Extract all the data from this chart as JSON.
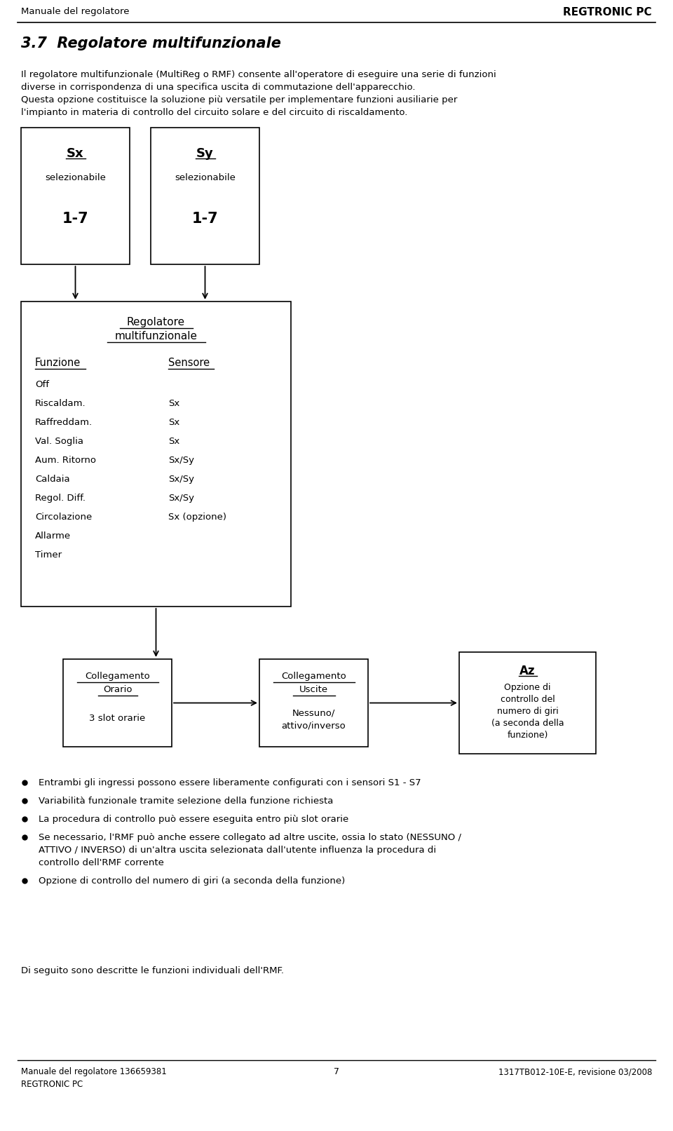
{
  "page_width": 9.6,
  "page_height": 16.13,
  "bg_color": "#ffffff",
  "header_left": "Manuale del regolatore",
  "header_right": "REGTRONIC PC",
  "section_title": "3.7  Regolatore multifunzionale",
  "para1_l1": "Il regolatore multifunzionale (MultiReg o RMF) consente all'operatore di eseguire una serie di funzioni",
  "para1_l2": "diverse in corrispondenza di una specifica uscita di commutazione dell'apparecchio.",
  "para2_l1": "Questa opzione costituisce la soluzione più versatile per implementare funzioni ausiliarie per",
  "para2_l2": "l'impianto in materia di controllo del circuito solare e del circuito di riscaldamento.",
  "box_sx_title": "Sx",
  "box_sx_sub": "selezionabile",
  "box_sx_val": "1-7",
  "box_sy_title": "Sy",
  "box_sy_sub": "selezionabile",
  "box_sy_val": "1-7",
  "reg_box_col1": "Funzione",
  "reg_box_col2": "Sensore",
  "func_rows": [
    [
      "Off",
      ""
    ],
    [
      "Riscaldam.",
      "Sx"
    ],
    [
      "Raffreddam.",
      "Sx"
    ],
    [
      "Val. Soglia",
      "Sx"
    ],
    [
      "Aum. Ritorno",
      "Sx/Sy"
    ],
    [
      "Caldaia",
      "Sx/Sy"
    ],
    [
      "Regol. Diff.",
      "Sx/Sy"
    ],
    [
      "Circolazione",
      "Sx (opzione)"
    ],
    [
      "Allarme",
      ""
    ],
    [
      "Timer",
      ""
    ]
  ],
  "box_col_title_l1": "Collegamento",
  "box_col_title_l2": "Orario",
  "box_col_sub": "3 slot orarie",
  "box_usc_title_l1": "Collegamento",
  "box_usc_title_l2": "Uscite",
  "box_usc_sub_l1": "Nessuno/",
  "box_usc_sub_l2": "attivo/inverso",
  "box_az_title": "Az",
  "box_az_lines": [
    "Opzione di",
    "controllo del",
    "numero di giri",
    "(a seconda della",
    "funzione)"
  ],
  "bullets": [
    [
      "Entrambi gli ingressi possono essere liberamente configurati con i sensori S1 - S7"
    ],
    [
      "Variabilità funzionale tramite selezione della funzione richiesta"
    ],
    [
      "La procedura di controllo può essere eseguita entro più slot orarie"
    ],
    [
      "Se necessario, l'RMF può anche essere collegato ad altre uscite, ossia lo stato (NESSUNO /",
      "ATTIVO / INVERSO) di un'altra uscita selezionata dall'utente influenza la procedura di",
      "controllo dell'RMF corrente"
    ],
    [
      "Opzione di controllo del numero di giri (a seconda della funzione)"
    ]
  ],
  "footer_note": "Di seguito sono descritte le funzioni individuali dell'RMF.",
  "footer_left_l1": "Manuale del regolatore 136659381",
  "footer_left_l2": "REGTRONIC PC",
  "footer_center": "7",
  "footer_right": "1317TB012-10E-E, revisione 03/2008"
}
